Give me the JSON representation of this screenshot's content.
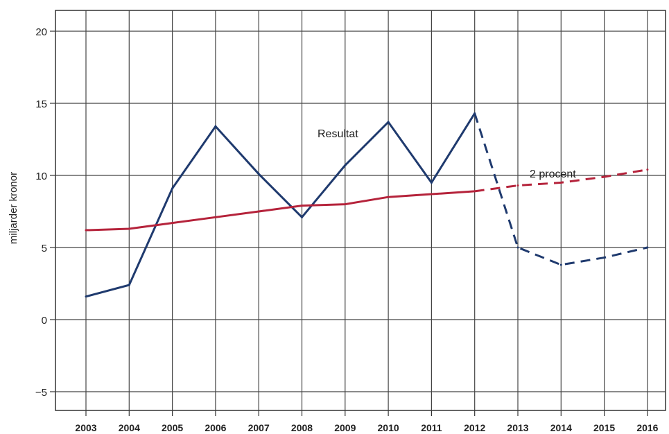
{
  "chart_data": {
    "type": "line",
    "title": "",
    "xlabel": "",
    "ylabel": "miljarder kronor",
    "categories": [
      "2003",
      "2004",
      "2005",
      "2006",
      "2007",
      "2008",
      "2009",
      "2010",
      "2011",
      "2012",
      "2013",
      "2014",
      "2015",
      "2016"
    ],
    "y_ticks": [
      "20",
      "15",
      "10",
      "5",
      "0",
      "−5"
    ],
    "y_tick_values": [
      20,
      15,
      10,
      5,
      0,
      -5
    ],
    "ylim": [
      -6,
      21
    ],
    "grid": true,
    "legend": "none",
    "annotations": [
      "Resultat",
      "2 procent"
    ],
    "series": [
      {
        "name": "Resultat",
        "color": "#1f3a6e",
        "values": [
          1.6,
          2.4,
          9.1,
          13.4,
          10.1,
          7.1,
          10.7,
          13.7,
          9.5,
          14.3,
          5.0,
          3.8,
          4.3,
          5.0
        ],
        "dashed_from_index": 9
      },
      {
        "name": "2 procent",
        "color": "#b5233b",
        "values": [
          6.2,
          6.3,
          6.7,
          7.1,
          7.5,
          7.9,
          8.0,
          8.5,
          8.7,
          8.9,
          9.3,
          9.5,
          9.9,
          10.4
        ],
        "dashed_from_index": 9
      }
    ]
  }
}
